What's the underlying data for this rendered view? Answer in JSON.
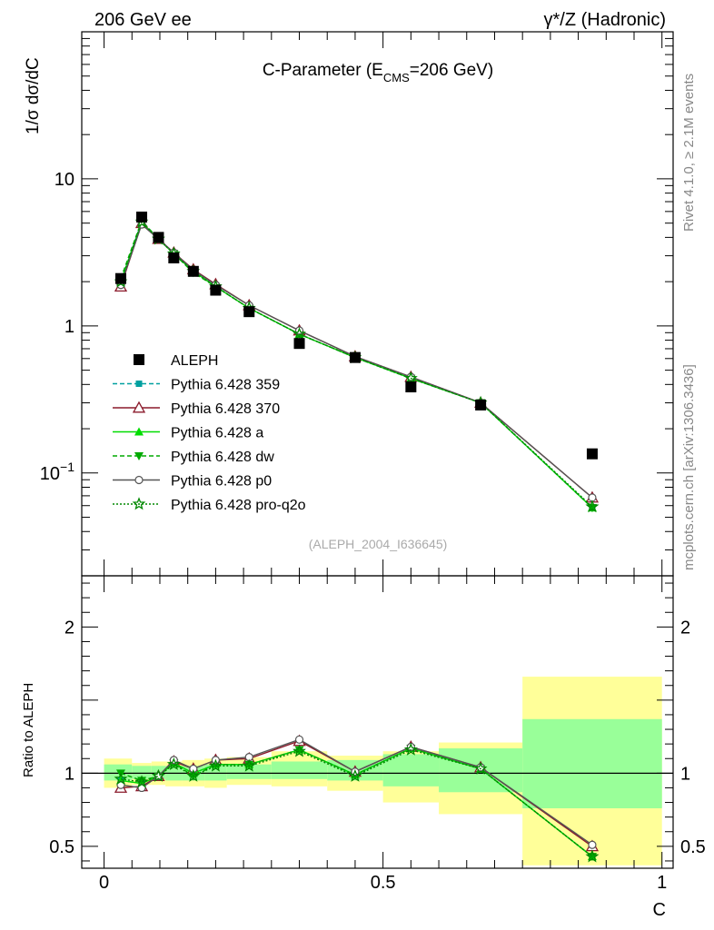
{
  "header": {
    "left": "206 GeV ee",
    "right": "γ*/Z (Hadronic)"
  },
  "side_labels": {
    "rivet": "Rivet 4.1.0, ≥ 2.1M events",
    "mcplots": "mcplots.cern.ch [arXiv:1306.3436]"
  },
  "chart_data": [
    {
      "type": "scatter",
      "panel": "main",
      "title_main": "C-Parameter (E",
      "title_sub": "CMS",
      "title_tail": "=206 GeV)",
      "ylabel": "1/σ  dσ/dC",
      "yscale": "log",
      "ylim": [
        0.02,
        100
      ],
      "xlim": [
        -0.04,
        1.02
      ],
      "yticks": [
        {
          "value": 10,
          "label": "10"
        },
        {
          "value": 1,
          "label": "1"
        },
        {
          "value": 0.1,
          "label": "10",
          "sup": "−1"
        }
      ],
      "watermark": "(ALEPH_2004_I636645)",
      "x": [
        0.03,
        0.0675,
        0.0975,
        0.125,
        0.16,
        0.2,
        0.26,
        0.35,
        0.45,
        0.55,
        0.675,
        0.875
      ],
      "data": {
        "name": "ALEPH",
        "values": [
          2.1,
          5.5,
          4.0,
          2.9,
          2.35,
          1.75,
          1.25,
          0.76,
          0.61,
          0.385,
          0.29,
          0.135
        ]
      },
      "series": [
        {
          "name": "Pythia 6.428 359",
          "color": "#00a0a0",
          "dash": "5,3",
          "marker": "square",
          "values": [
            2.0,
            5.1,
            3.95,
            3.1,
            2.35,
            1.85,
            1.32,
            0.88,
            0.61,
            0.44,
            0.3,
            0.058
          ]
        },
        {
          "name": "Pythia 6.428 370",
          "color": "#8b1a2b",
          "dash": "",
          "marker": "triangle-open",
          "values": [
            1.85,
            5.0,
            3.9,
            3.15,
            2.42,
            1.92,
            1.38,
            0.93,
            0.62,
            0.45,
            0.3,
            0.068
          ]
        },
        {
          "name": "Pythia 6.428 a",
          "color": "#00dd00",
          "dash": "",
          "marker": "triangle",
          "values": [
            2.0,
            5.0,
            3.9,
            3.1,
            2.35,
            1.85,
            1.32,
            0.88,
            0.61,
            0.44,
            0.3,
            0.058
          ]
        },
        {
          "name": "Pythia 6.428 dw",
          "color": "#00aa00",
          "dash": "5,3",
          "marker": "triangle-down",
          "values": [
            2.1,
            5.2,
            3.9,
            3.1,
            2.3,
            1.85,
            1.32,
            0.88,
            0.61,
            0.44,
            0.3,
            0.058
          ]
        },
        {
          "name": "Pythia 6.428 p0",
          "color": "#555555",
          "dash": "",
          "marker": "circle-open",
          "values": [
            1.9,
            4.9,
            3.9,
            3.15,
            2.4,
            1.9,
            1.38,
            0.93,
            0.62,
            0.45,
            0.3,
            0.068
          ]
        },
        {
          "name": "Pythia 6.428 pro-q2o",
          "color": "#008800",
          "dash": "2,2",
          "marker": "star",
          "values": [
            2.0,
            5.1,
            3.9,
            3.1,
            2.35,
            1.85,
            1.32,
            0.88,
            0.61,
            0.44,
            0.3,
            0.059
          ]
        }
      ]
    },
    {
      "type": "scatter",
      "panel": "ratio",
      "ylabel": "Ratio to ALEPH",
      "xlabel": "C",
      "ylim": [
        0.35,
        2.35
      ],
      "xlim": [
        -0.04,
        1.02
      ],
      "yticks": [
        {
          "value": 0.5,
          "label": "0.5"
        },
        {
          "value": 1,
          "label": "1"
        },
        {
          "value": 2,
          "label": "2"
        }
      ],
      "xticks": [
        {
          "value": 0,
          "label": "0"
        },
        {
          "value": 0.5,
          "label": "0.5"
        },
        {
          "value": 1,
          "label": "1"
        }
      ],
      "bands": {
        "edges": [
          0,
          0.05,
          0.085,
          0.11,
          0.14,
          0.18,
          0.22,
          0.3,
          0.4,
          0.5,
          0.6,
          0.75,
          1.0
        ],
        "stat_low": [
          0.95,
          0.96,
          0.96,
          0.95,
          0.95,
          0.95,
          0.96,
          0.96,
          0.95,
          0.91,
          0.87,
          0.76
        ],
        "stat_high": [
          1.06,
          1.05,
          1.05,
          1.05,
          1.05,
          1.06,
          1.06,
          1.08,
          1.09,
          1.13,
          1.17,
          1.37
        ],
        "tot_low": [
          0.9,
          0.92,
          0.92,
          0.91,
          0.91,
          0.9,
          0.92,
          0.91,
          0.88,
          0.8,
          0.72,
          0.37
        ],
        "tot_high": [
          1.1,
          1.07,
          1.08,
          1.08,
          1.09,
          1.1,
          1.11,
          1.15,
          1.12,
          1.15,
          1.21,
          1.66
        ]
      },
      "series": [
        {
          "name": "Pythia 6.428 359",
          "values": [
            0.95,
            0.93,
            0.98,
            1.07,
            1.0,
            1.06,
            1.06,
            1.16,
            0.99,
            1.17,
            1.03,
            0.43
          ]
        },
        {
          "name": "Pythia 6.428 370",
          "values": [
            0.9,
            0.91,
            0.98,
            1.08,
            1.03,
            1.09,
            1.1,
            1.22,
            1.01,
            1.18,
            1.04,
            0.5
          ]
        },
        {
          "name": "Pythia 6.428 a",
          "values": [
            0.95,
            0.93,
            0.98,
            1.07,
            1.0,
            1.06,
            1.06,
            1.16,
            0.99,
            1.17,
            1.03,
            0.43
          ]
        },
        {
          "name": "Pythia 6.428 dw",
          "values": [
            1.0,
            0.95,
            0.98,
            1.07,
            0.98,
            1.06,
            1.06,
            1.16,
            0.99,
            1.17,
            1.03,
            0.43
          ]
        },
        {
          "name": "Pythia 6.428 p0",
          "values": [
            0.92,
            0.9,
            0.98,
            1.09,
            1.03,
            1.09,
            1.11,
            1.23,
            1.01,
            1.18,
            1.04,
            0.51
          ]
        },
        {
          "name": "Pythia 6.428 pro-q2o",
          "values": [
            0.96,
            0.94,
            0.98,
            1.06,
            0.98,
            1.05,
            1.05,
            1.15,
            0.98,
            1.16,
            1.03,
            0.43
          ]
        }
      ]
    }
  ]
}
